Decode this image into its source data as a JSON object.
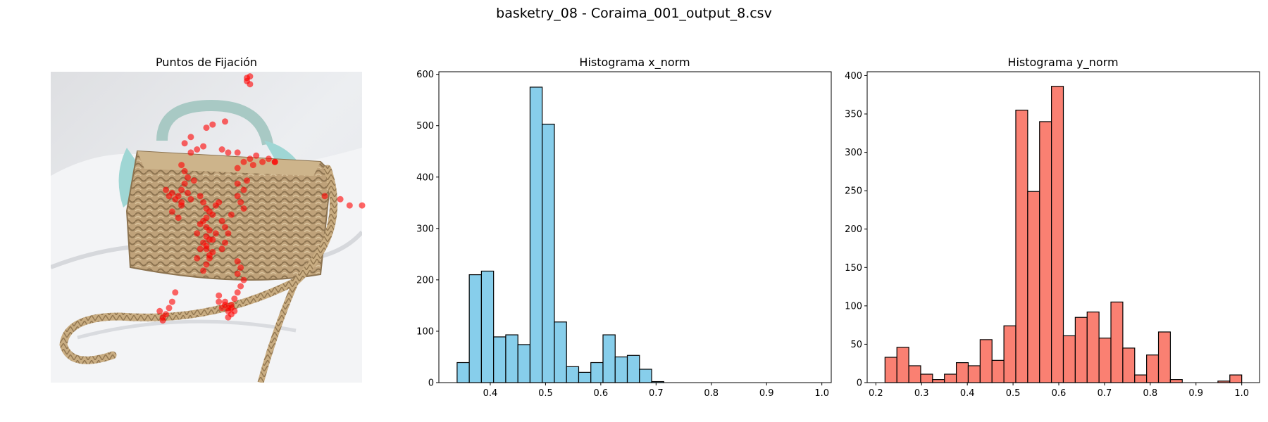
{
  "figure": {
    "suptitle": "basketry_08 - Coraima_001_output_8.csv"
  },
  "colors": {
    "x_hist": "#87ceeb",
    "y_hist": "#fa8072",
    "fixation": "#ff0000",
    "edge": "#000000"
  },
  "chart_data": [
    {
      "type": "scatter",
      "title": "Puntos de Fijación",
      "axis": "off",
      "background": "photo of a woven straw basket bag with a braided strap and a light-blue patterned scarf tied on the handle",
      "points_x_norm": [
        0.63,
        0.63,
        0.64,
        0.64,
        0.56,
        0.5,
        0.52,
        0.45,
        0.47,
        0.49,
        0.55,
        0.57,
        0.6,
        0.62,
        0.65,
        0.68,
        0.7,
        0.72,
        0.42,
        0.43,
        0.44,
        0.43,
        0.42,
        0.44,
        0.46,
        0.45,
        0.4,
        0.38,
        0.39,
        0.41,
        0.37,
        0.39,
        0.42,
        0.41,
        0.42,
        0.48,
        0.49,
        0.5,
        0.51,
        0.5,
        0.49,
        0.52,
        0.5,
        0.48,
        0.51,
        0.5,
        0.52,
        0.49,
        0.47,
        0.5,
        0.53,
        0.51,
        0.55,
        0.56,
        0.6,
        0.62,
        0.63,
        0.6,
        0.61,
        0.62,
        0.58,
        0.57,
        0.56,
        0.51,
        0.5,
        0.49,
        0.52,
        0.5,
        0.48,
        0.51,
        0.47,
        0.55,
        0.6,
        0.61,
        0.6,
        0.62,
        0.61,
        0.6,
        0.59,
        0.58,
        0.57,
        0.56,
        0.59,
        0.58,
        0.57,
        0.4,
        0.39,
        0.38,
        0.37,
        0.36,
        0.36,
        0.35,
        0.54,
        0.55,
        0.56,
        0.57,
        0.58,
        0.54,
        0.88,
        0.93,
        0.96,
        1.0,
        0.72,
        0.6,
        0.64,
        0.66,
        0.43,
        0.45,
        0.53,
        0.54
      ],
      "points_y_norm": [
        0.02,
        0.03,
        0.04,
        0.015,
        0.16,
        0.18,
        0.17,
        0.26,
        0.25,
        0.24,
        0.25,
        0.26,
        0.26,
        0.29,
        0.3,
        0.29,
        0.28,
        0.29,
        0.3,
        0.32,
        0.34,
        0.36,
        0.38,
        0.39,
        0.35,
        0.41,
        0.41,
        0.4,
        0.39,
        0.4,
        0.38,
        0.45,
        0.43,
        0.47,
        0.42,
        0.4,
        0.42,
        0.44,
        0.45,
        0.47,
        0.48,
        0.46,
        0.5,
        0.49,
        0.51,
        0.53,
        0.54,
        0.55,
        0.52,
        0.57,
        0.52,
        0.59,
        0.48,
        0.5,
        0.36,
        0.38,
        0.35,
        0.4,
        0.42,
        0.44,
        0.46,
        0.52,
        0.55,
        0.6,
        0.62,
        0.64,
        0.58,
        0.56,
        0.57,
        0.54,
        0.6,
        0.57,
        0.61,
        0.63,
        0.65,
        0.67,
        0.69,
        0.71,
        0.73,
        0.75,
        0.76,
        0.74,
        0.77,
        0.78,
        0.79,
        0.71,
        0.74,
        0.76,
        0.78,
        0.79,
        0.8,
        0.77,
        0.74,
        0.76,
        0.75,
        0.77,
        0.76,
        0.72,
        0.4,
        0.41,
        0.43,
        0.43,
        0.29,
        0.31,
        0.28,
        0.27,
        0.23,
        0.21,
        0.43,
        0.42
      ]
    },
    {
      "type": "bar",
      "title": "Histograma x_norm",
      "bin_edges": [
        0.34,
        0.362,
        0.384,
        0.406,
        0.428,
        0.45,
        0.472,
        0.494,
        0.516,
        0.538,
        0.56,
        0.582,
        0.604,
        0.626,
        0.648,
        0.67,
        0.692,
        0.714,
        0.736,
        0.758,
        0.78,
        0.802,
        0.824,
        0.846,
        0.868,
        0.89,
        0.912,
        0.934,
        0.956,
        0.978,
        1.0
      ],
      "values": [
        39,
        210,
        217,
        89,
        93,
        74,
        575,
        503,
        118,
        31,
        20,
        39,
        93,
        50,
        53,
        26,
        2,
        0,
        0,
        0,
        0,
        0,
        0,
        0,
        0,
        0,
        0,
        0,
        0,
        0
      ],
      "xlim": [
        0.307,
        1.017
      ],
      "ylim": [
        0,
        605
      ],
      "xticks": [
        0.4,
        0.5,
        0.6,
        0.7,
        0.8,
        0.9,
        1.0
      ],
      "xtick_labels": [
        "0.4",
        "0.5",
        "0.6",
        "0.7",
        "0.8",
        "0.9",
        "1.0"
      ],
      "yticks": [
        0,
        100,
        200,
        300,
        400,
        500,
        600
      ],
      "ytick_labels": [
        "0",
        "100",
        "200",
        "300",
        "400",
        "500",
        "600"
      ]
    },
    {
      "type": "bar",
      "title": "Histograma y_norm",
      "bin_edges": [
        0.22,
        0.246,
        0.272,
        0.298,
        0.324,
        0.35,
        0.376,
        0.402,
        0.428,
        0.454,
        0.48,
        0.506,
        0.532,
        0.558,
        0.584,
        0.61,
        0.636,
        0.662,
        0.688,
        0.714,
        0.74,
        0.766,
        0.792,
        0.818,
        0.844,
        0.87,
        0.896,
        0.922,
        0.948,
        0.974,
        1.0
      ],
      "values": [
        33,
        46,
        22,
        11,
        4,
        11,
        26,
        22,
        56,
        29,
        74,
        355,
        249,
        340,
        386,
        61,
        85,
        92,
        58,
        105,
        45,
        10,
        36,
        66,
        4,
        0,
        0,
        0,
        2,
        10
      ],
      "xlim": [
        0.181,
        1.039
      ],
      "ylim": [
        0,
        405
      ],
      "xticks": [
        0.2,
        0.3,
        0.4,
        0.5,
        0.6,
        0.7,
        0.8,
        0.9,
        1.0
      ],
      "xtick_labels": [
        "0.2",
        "0.3",
        "0.4",
        "0.5",
        "0.6",
        "0.7",
        "0.8",
        "0.9",
        "1.0"
      ],
      "yticks": [
        0,
        50,
        100,
        150,
        200,
        250,
        300,
        350,
        400
      ],
      "ytick_labels": [
        "0",
        "50",
        "100",
        "150",
        "200",
        "250",
        "300",
        "350",
        "400"
      ]
    }
  ]
}
